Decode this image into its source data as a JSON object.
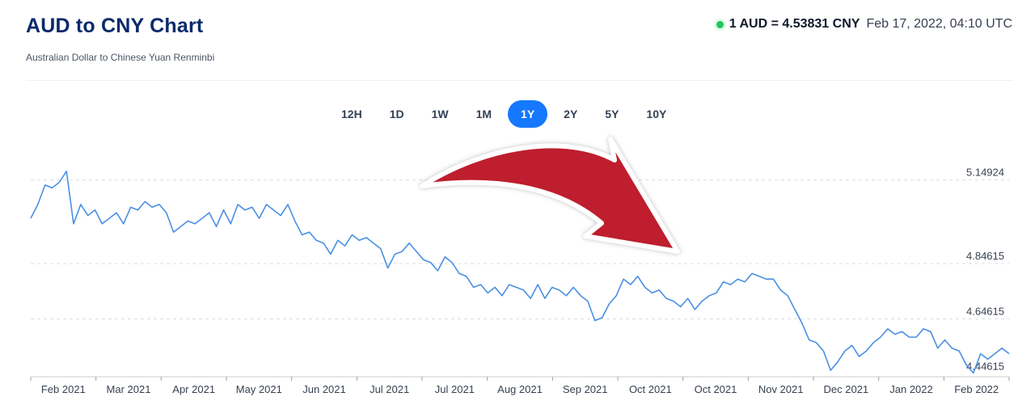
{
  "header": {
    "title": "AUD to CNY Chart",
    "subtitle": "Australian Dollar to Chinese Yuan Renminbi",
    "rate_text": "1 AUD = 4.53831 CNY",
    "timestamp": "Feb 17, 2022, 04:10 UTC",
    "live_indicator": "green-dot-icon"
  },
  "range_tabs": [
    {
      "label": "12H",
      "active": false
    },
    {
      "label": "1D",
      "active": false
    },
    {
      "label": "1W",
      "active": false
    },
    {
      "label": "1M",
      "active": false
    },
    {
      "label": "1Y",
      "active": true
    },
    {
      "label": "2Y",
      "active": false
    },
    {
      "label": "5Y",
      "active": false
    },
    {
      "label": "10Y",
      "active": false
    }
  ],
  "colors": {
    "line": "#4a90e2",
    "active_tab": "#1677ff",
    "arrow": "#be1e2d",
    "title": "#0b2a6b"
  },
  "overlay": {
    "icon": "curved-down-arrow-icon",
    "color": "#be1e2d"
  },
  "chart_data": {
    "type": "line",
    "title": "",
    "xlabel": "",
    "ylabel": "",
    "y_ticks": [
      5.14924,
      4.84615,
      4.64615,
      4.44615
    ],
    "y_tick_labels": [
      "5.14924",
      "4.84615",
      "4.64615",
      "4.44615"
    ],
    "ylim": [
      4.4395,
      5.2
    ],
    "x_tick_labels": [
      "Feb 2021",
      "Mar 2021",
      "Apr 2021",
      "May 2021",
      "Jun 2021",
      "Jul 2021",
      "Jul 2021",
      "Aug 2021",
      "Sep 2021",
      "Oct 2021",
      "Oct 2021",
      "Nov 2021",
      "Dec 2021",
      "Jan 2022",
      "Feb 2022"
    ],
    "grid": true,
    "series": [
      {
        "values": [
          5.01,
          5.06,
          5.13,
          5.12,
          5.14,
          5.18,
          4.99,
          5.06,
          5.02,
          5.04,
          4.99,
          5.01,
          5.03,
          4.99,
          5.05,
          5.04,
          5.07,
          5.05,
          5.06,
          5.03,
          4.96,
          4.98,
          5.0,
          4.99,
          5.01,
          5.03,
          4.98,
          5.04,
          4.99,
          5.06,
          5.04,
          5.05,
          5.01,
          5.06,
          5.04,
          5.02,
          5.06,
          5.0,
          4.95,
          4.96,
          4.93,
          4.92,
          4.88,
          4.93,
          4.91,
          4.95,
          4.93,
          4.94,
          4.92,
          4.9,
          4.83,
          4.88,
          4.89,
          4.92,
          4.89,
          4.86,
          4.85,
          4.82,
          4.87,
          4.85,
          4.81,
          4.8,
          4.76,
          4.77,
          4.74,
          4.76,
          4.73,
          4.77,
          4.76,
          4.75,
          4.72,
          4.77,
          4.72,
          4.76,
          4.75,
          4.73,
          4.76,
          4.73,
          4.71,
          4.64,
          4.65,
          4.7,
          4.73,
          4.79,
          4.77,
          4.8,
          4.76,
          4.74,
          4.75,
          4.72,
          4.71,
          4.69,
          4.72,
          4.68,
          4.71,
          4.73,
          4.74,
          4.78,
          4.77,
          4.79,
          4.78,
          4.81,
          4.8,
          4.79,
          4.79,
          4.75,
          4.73,
          4.68,
          4.63,
          4.57,
          4.56,
          4.53,
          4.46,
          4.49,
          4.53,
          4.55,
          4.51,
          4.53,
          4.56,
          4.58,
          4.61,
          4.59,
          4.6,
          4.58,
          4.58,
          4.61,
          4.6,
          4.54,
          4.57,
          4.54,
          4.53,
          4.48,
          4.45,
          4.52,
          4.5,
          4.52,
          4.54,
          4.52
        ]
      }
    ]
  }
}
